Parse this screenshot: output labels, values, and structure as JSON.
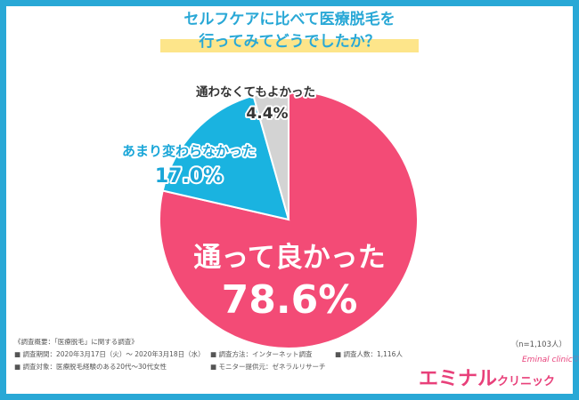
{
  "title": {
    "line1": "セルフケアに比べて医療脱毛を",
    "line2": "行ってみてどうでしたか？"
  },
  "chart_data": {
    "type": "pie",
    "slices": [
      {
        "label": "通って良かった",
        "value": "78.6%",
        "percent": 78.6,
        "color": "#f34b76"
      },
      {
        "label": "あまり変わらなかった",
        "value": "17.0%",
        "percent": 17.0,
        "color": "#1ab3e0"
      },
      {
        "label": "通わなくてもよかった",
        "value": "4.4%",
        "percent": 4.4,
        "color": "#d3d3d3"
      }
    ]
  },
  "sample_size": "（n=1,103人）",
  "footnotes": {
    "overview": "《調査概要：「医療脱毛」に関する調査》",
    "period": "■ 調査期間：2020年3月17日（火）～ 2020年3月18日（水）",
    "method": "■ 調査方法：インターネット調査",
    "count": "■ 調査人数：1,116人",
    "target": "■ 調査対象：医療脱毛経験のある20代～30代女性",
    "provider": "■ モニター提供元：ゼネラルリサーチ"
  },
  "logo": {
    "main": "エミナル",
    "sub": "クリニック",
    "script": "Eminal clinic♡"
  }
}
